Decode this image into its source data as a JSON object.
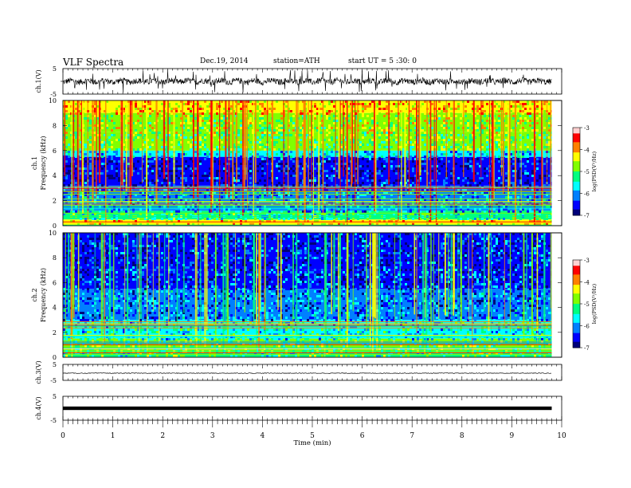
{
  "header": {
    "title": "VLF  Spectra",
    "date": "Dec.19, 2014",
    "station": "station=ATH",
    "start": "start  UT  =   5  :30: 0"
  },
  "chart_data": [
    {
      "type": "line",
      "panel": "ch1-waveform",
      "ylabel": "ch.1(V)",
      "ylim": [
        -5,
        5
      ],
      "yticks": [
        "5",
        "-5"
      ],
      "xlim": [
        0,
        9.8
      ],
      "description_values": "noisy waveform centered near 0 V, amplitude mostly within about -1.5 to 1.5 V with spikes to about -4"
    },
    {
      "type": "heatmap",
      "panel": "ch1-spectrogram",
      "ylabel": "ch.1\nFrequency (kHz)",
      "ylabel_parts": [
        "ch.1",
        "Frequency  (kHz)"
      ],
      "ylim": [
        0,
        10
      ],
      "yticks": [
        "0",
        "2",
        "4",
        "6",
        "8",
        "10"
      ],
      "xlim": [
        0,
        9.8
      ],
      "colorbar": {
        "label": "log(PSD(V²/Hz)",
        "ticks": [
          "-3",
          "-4",
          "-5",
          "-6",
          "-7"
        ],
        "range": [
          -7,
          -3
        ]
      },
      "bands": [
        {
          "f_low": 0,
          "f_high": 0.5,
          "level": -4.2
        },
        {
          "f_low": 0.5,
          "f_high": 1.2,
          "level": -5.3
        },
        {
          "f_low": 1.2,
          "f_high": 3.2,
          "level": -6.0
        },
        {
          "f_low": 3.2,
          "f_high": 5.5,
          "level": -6.6
        },
        {
          "f_low": 5.5,
          "f_high": 6.0,
          "level": -5.8
        },
        {
          "f_low": 6.0,
          "f_high": 7.5,
          "level": -5.0
        },
        {
          "f_low": 7.5,
          "f_high": 9.0,
          "level": -4.7
        },
        {
          "f_low": 9.0,
          "f_high": 10,
          "level": -4.2
        }
      ]
    },
    {
      "type": "heatmap",
      "panel": "ch2-spectrogram",
      "ylabel_parts": [
        "ch.2",
        "Frequency  (kHz)"
      ],
      "ylim": [
        0,
        10
      ],
      "yticks": [
        "0",
        "2",
        "4",
        "6",
        "8",
        "10"
      ],
      "xlim": [
        0,
        9.8
      ],
      "colorbar": {
        "label": "log(PSD(V²/Hz)",
        "ticks": [
          "-3",
          "-4",
          "-5",
          "-6",
          "-7"
        ],
        "range": [
          -7,
          -3
        ]
      },
      "bands": [
        {
          "f_low": 0,
          "f_high": 0.4,
          "level": -5.2
        },
        {
          "f_low": 0.4,
          "f_high": 1.5,
          "level": -5.0
        },
        {
          "f_low": 1.5,
          "f_high": 3.0,
          "level": -5.6
        },
        {
          "f_low": 3.0,
          "f_high": 5.5,
          "level": -6.2
        },
        {
          "f_low": 5.5,
          "f_high": 7.0,
          "level": -6.4
        },
        {
          "f_low": 7.0,
          "f_high": 10,
          "level": -6.5
        }
      ]
    },
    {
      "type": "line",
      "panel": "ch3-waveform",
      "ylabel": "ch.3(V)",
      "ylim": [
        -5,
        5
      ],
      "yticks": [
        "5",
        "-5"
      ],
      "xlim": [
        0,
        9.8
      ],
      "level": -0.5
    },
    {
      "type": "line",
      "panel": "ch4-waveform",
      "ylabel": "ch.4(V)",
      "ylim": [
        -5,
        5
      ],
      "yticks": [
        "5",
        "-5"
      ],
      "xlim": [
        0,
        9.8
      ],
      "level": 0
    }
  ],
  "xaxis": {
    "label": "Time  (min)",
    "ticks": [
      "0",
      "1",
      "2",
      "3",
      "4",
      "5",
      "6",
      "7",
      "8",
      "9",
      "10"
    ],
    "range": [
      0,
      10
    ]
  },
  "colors": {
    "colormap": [
      "#00007a",
      "#0000ff",
      "#0080ff",
      "#00ffff",
      "#00ff80",
      "#80ff00",
      "#ffff00",
      "#ff8000",
      "#ff0000",
      "#ffd0d0"
    ]
  }
}
